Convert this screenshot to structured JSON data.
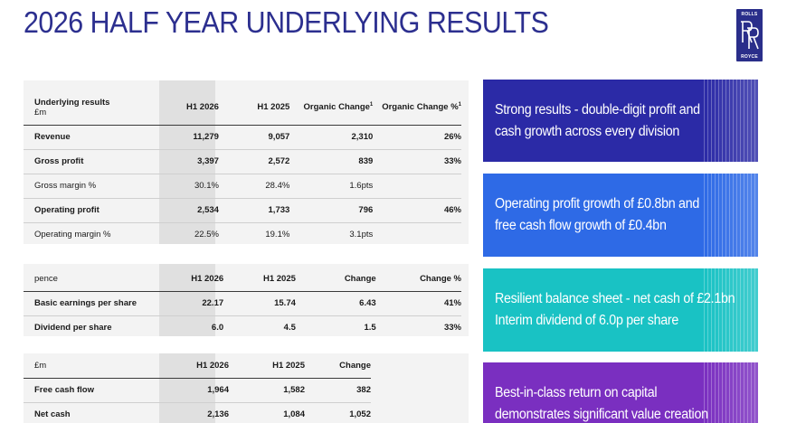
{
  "title": "2026 HALF YEAR UNDERLYING RESULTS",
  "logo": {
    "top": "ROLLS",
    "bottom": "ROYCE"
  },
  "colors": {
    "title": "#2c2f8f",
    "card1": "#2b2aa6",
    "card2": "#2e6ae6",
    "card3": "#19c2c4",
    "card4": "#7a2fc0"
  },
  "table1": {
    "header": {
      "label": "Underlying results",
      "unit": "£m",
      "c2": "H1 2026",
      "c3": "H1 2025",
      "c4": "Organic Change",
      "c5": "Organic Change %",
      "sup": "1"
    },
    "rows": [
      {
        "label": "Revenue",
        "c2": "11,279",
        "c3": "9,057",
        "c4": "2,310",
        "c5": "26%",
        "bold": true
      },
      {
        "label": "Gross profit",
        "c2": "3,397",
        "c3": "2,572",
        "c4": "839",
        "c5": "33%",
        "bold": true
      },
      {
        "label": "Gross margin %",
        "c2": "30.1%",
        "c3": "28.4%",
        "c4": "1.6pts",
        "c5": "",
        "bold": false
      },
      {
        "label": "Operating profit",
        "c2": "2,534",
        "c3": "1,733",
        "c4": "796",
        "c5": "46%",
        "bold": true
      },
      {
        "label": "Operating margin %",
        "c2": "22.5%",
        "c3": "19.1%",
        "c4": "3.1pts",
        "c5": "",
        "bold": false
      }
    ]
  },
  "table2": {
    "header": {
      "label": "pence",
      "c2": "H1 2026",
      "c3": "H1 2025",
      "c4": "Change",
      "c5": "Change %"
    },
    "rows": [
      {
        "label": "Basic earnings per share",
        "c2": "22.17",
        "c3": "15.74",
        "c4": "6.43",
        "c5": "41%"
      },
      {
        "label": "Dividend per share",
        "c2": "6.0",
        "c3": "4.5",
        "c4": "1.5",
        "c5": "33%"
      }
    ]
  },
  "table3": {
    "header": {
      "label": "£m",
      "c2": "H1 2026",
      "c3": "H1 2025",
      "c4": "Change"
    },
    "rows": [
      {
        "label": "Free cash flow",
        "c2": "1,964",
        "c3": "1,582",
        "c4": "382"
      },
      {
        "label": "Net cash",
        "c2": "2,136",
        "c3": "1,084",
        "c4": "1,052"
      }
    ]
  },
  "cards": [
    {
      "line1": "Strong results - double-digit profit and",
      "line2": "cash growth across every division"
    },
    {
      "line1": "Operating profit growth of £0.8bn and",
      "line2": "free cash flow growth of £0.4bn"
    },
    {
      "line1": "Resilient balance sheet - net cash of £2.1bn",
      "line2": "Interim dividend of 6.0p per share"
    },
    {
      "line1": "Best-in-class return on capital",
      "line2": "demonstrates significant value creation"
    }
  ]
}
